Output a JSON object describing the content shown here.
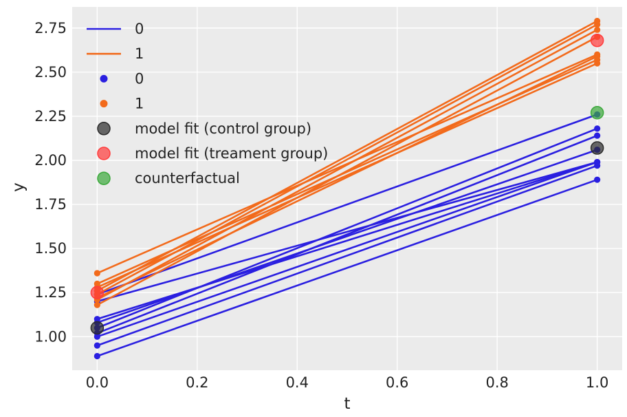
{
  "chart_data": {
    "type": "line",
    "xlabel": "t",
    "ylabel": "y",
    "xlim": [
      -0.05,
      1.05
    ],
    "ylim": [
      0.81,
      2.87
    ],
    "xticks": [
      {
        "value": 0.0,
        "label": "0.0"
      },
      {
        "value": 0.2,
        "label": "0.2"
      },
      {
        "value": 0.4,
        "label": "0.4"
      },
      {
        "value": 0.6,
        "label": "0.6"
      },
      {
        "value": 0.8,
        "label": "0.8"
      },
      {
        "value": 1.0,
        "label": "1.0"
      }
    ],
    "yticks": [
      {
        "value": 1.0,
        "label": "1.00"
      },
      {
        "value": 1.25,
        "label": "1.25"
      },
      {
        "value": 1.5,
        "label": "1.50"
      },
      {
        "value": 1.75,
        "label": "1.75"
      },
      {
        "value": 2.0,
        "label": "2.00"
      },
      {
        "value": 2.25,
        "label": "2.25"
      },
      {
        "value": 2.5,
        "label": "2.50"
      },
      {
        "value": 2.75,
        "label": "2.75"
      }
    ],
    "grid": true,
    "legend_position": "top-left",
    "colors": {
      "control": "#2a1fe0",
      "treatment": "#f26a1b",
      "background": "#ebebeb",
      "model_fit_control": "#2b2b2b",
      "model_fit_treatment": "#ff3b3b",
      "counterfactual": "#3aa83a"
    },
    "series": [
      {
        "name": "0",
        "kind": "line",
        "color": "#2a1fe0",
        "units": [
          {
            "x": [
              0,
              1
            ],
            "y": [
              1.1,
              1.99
            ]
          },
          {
            "x": [
              0,
              1
            ],
            "y": [
              1.08,
              2.06
            ]
          },
          {
            "x": [
              0,
              1
            ],
            "y": [
              1.24,
              2.26
            ]
          },
          {
            "x": [
              0,
              1
            ],
            "y": [
              1.05,
              2.18
            ]
          },
          {
            "x": [
              0,
              1
            ],
            "y": [
              1.02,
              2.14
            ]
          },
          {
            "x": [
              0,
              1
            ],
            "y": [
              1.0,
              1.99
            ]
          },
          {
            "x": [
              0,
              1
            ],
            "y": [
              0.95,
              1.97
            ]
          },
          {
            "x": [
              0,
              1
            ],
            "y": [
              0.89,
              1.89
            ]
          },
          {
            "x": [
              0,
              1
            ],
            "y": [
              1.2,
              1.99
            ]
          }
        ]
      },
      {
        "name": "1",
        "kind": "line",
        "color": "#f26a1b",
        "units": [
          {
            "x": [
              0,
              1
            ],
            "y": [
              1.36,
              2.6
            ]
          },
          {
            "x": [
              0,
              1
            ],
            "y": [
              1.3,
              2.57
            ]
          },
          {
            "x": [
              0,
              1
            ],
            "y": [
              1.28,
              2.55
            ]
          },
          {
            "x": [
              0,
              1
            ],
            "y": [
              1.26,
              2.79
            ]
          },
          {
            "x": [
              0,
              1
            ],
            "y": [
              1.24,
              2.77
            ]
          },
          {
            "x": [
              0,
              1
            ],
            "y": [
              1.21,
              2.74
            ]
          },
          {
            "x": [
              0,
              1
            ],
            "y": [
              1.18,
              2.7
            ]
          },
          {
            "x": [
              0,
              1
            ],
            "y": [
              1.22,
              2.59
            ]
          }
        ]
      },
      {
        "name": "0",
        "kind": "points",
        "color": "#2a1fe0"
      },
      {
        "name": "1",
        "kind": "points",
        "color": "#f26a1b"
      },
      {
        "name": "model fit (control group)",
        "kind": "marker",
        "color": "#2b2b2b",
        "points": [
          {
            "x": 0,
            "y": 1.05
          },
          {
            "x": 1,
            "y": 2.07
          }
        ]
      },
      {
        "name": "model fit (treament group)",
        "kind": "marker",
        "color": "#ff3b3b",
        "points": [
          {
            "x": 0,
            "y": 1.25
          },
          {
            "x": 1,
            "y": 2.68
          }
        ]
      },
      {
        "name": "counterfactual",
        "kind": "marker",
        "color": "#3aa83a",
        "points": [
          {
            "x": 1,
            "y": 2.27
          }
        ]
      }
    ],
    "legend": [
      {
        "label": "0",
        "kind": "line",
        "color": "#2a1fe0"
      },
      {
        "label": "1",
        "kind": "line",
        "color": "#f26a1b"
      },
      {
        "label": "0",
        "kind": "dot",
        "color": "#2a1fe0"
      },
      {
        "label": "1",
        "kind": "dot",
        "color": "#f26a1b"
      },
      {
        "label": "model fit (control group)",
        "kind": "marker",
        "color": "#2b2b2b"
      },
      {
        "label": "model fit (treament group)",
        "kind": "marker",
        "color": "#ff3b3b"
      },
      {
        "label": "counterfactual",
        "kind": "marker",
        "color": "#3aa83a"
      }
    ]
  }
}
